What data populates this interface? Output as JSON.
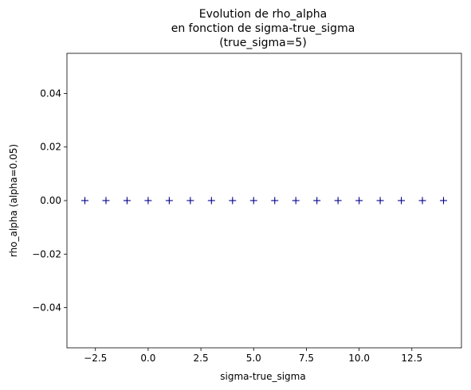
{
  "chart_data": {
    "type": "scatter",
    "title_lines": [
      "Evolution de rho_alpha",
      "en fonction de sigma-true_sigma",
      "(true_sigma=5)"
    ],
    "xlabel": "sigma-true_sigma",
    "ylabel": "rho_alpha (alpha=0.05)",
    "xlim": [
      -3.85,
      14.85
    ],
    "ylim": [
      -0.055,
      0.055
    ],
    "x_ticks": [
      -2.5,
      0.0,
      2.5,
      5.0,
      7.5,
      10.0,
      12.5
    ],
    "x_tick_labels": [
      "−2.5",
      "0.0",
      "2.5",
      "5.0",
      "7.5",
      "10.0",
      "12.5"
    ],
    "y_ticks": [
      -0.04,
      -0.02,
      0.0,
      0.02,
      0.04
    ],
    "y_tick_labels": [
      "−0.04",
      "−0.02",
      "0.00",
      "0.02",
      "0.04"
    ],
    "grid": false,
    "marker": "+",
    "marker_color": "#00008b",
    "series": [
      {
        "x": [
          -3,
          -2,
          -1,
          0,
          1,
          2,
          3,
          4,
          5,
          6,
          7,
          8,
          9,
          10,
          11,
          12,
          13,
          14
        ],
        "y": [
          0,
          0,
          0,
          0,
          0,
          0,
          0,
          0,
          0,
          0,
          0,
          0,
          0,
          0,
          0,
          0,
          0,
          0
        ]
      }
    ]
  }
}
